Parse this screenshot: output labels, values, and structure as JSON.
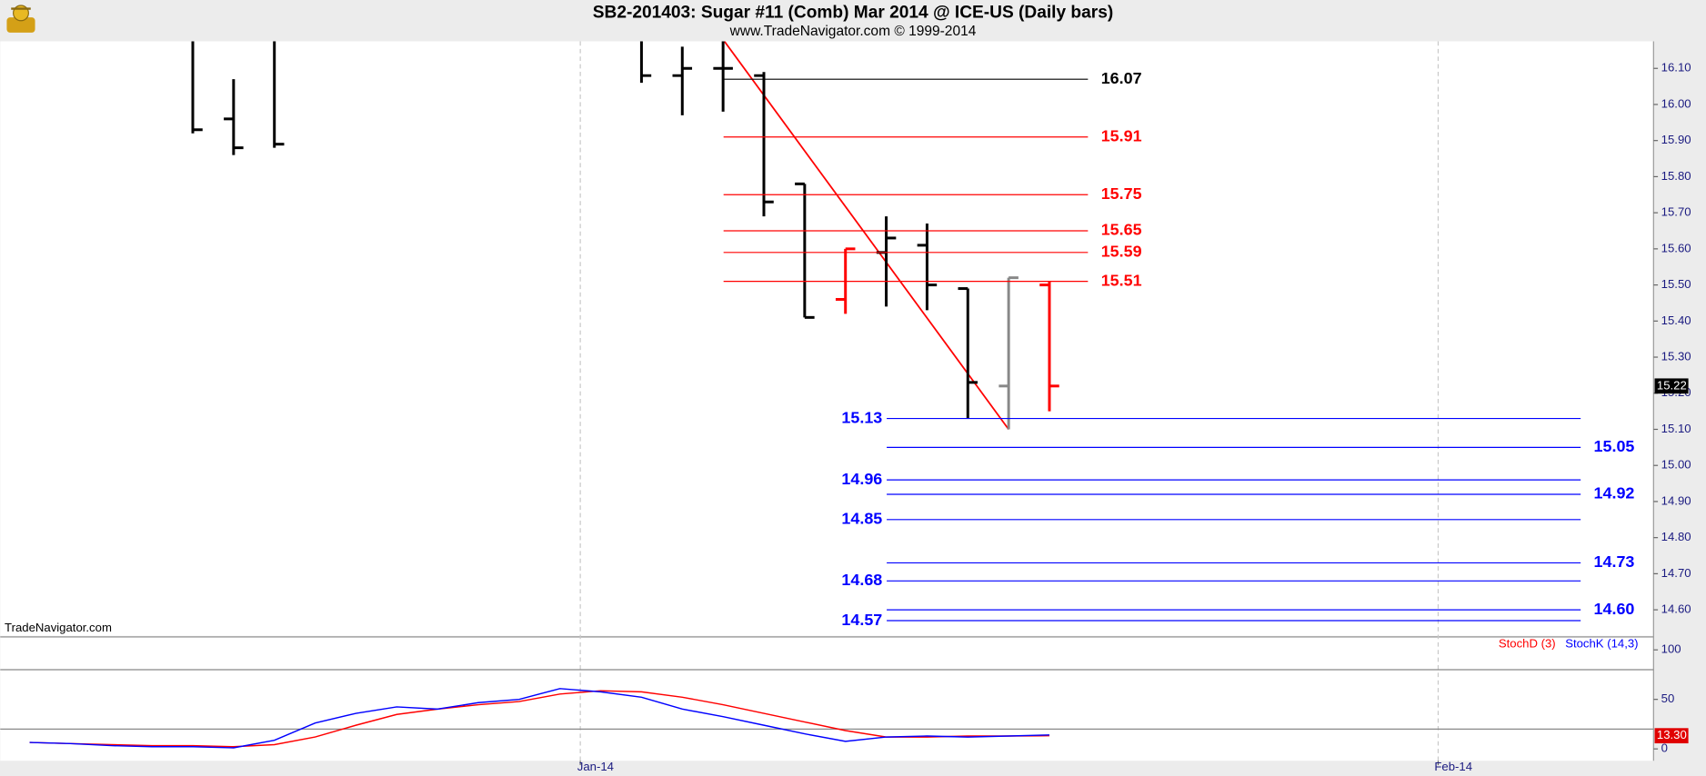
{
  "chart_data": [
    {
      "type": "ohlc",
      "title": "SB2-201403:  Sugar #11 (Comb) Mar 2014 @ ICE-US  (Daily bars)",
      "subtitle": "www.TradeNavigator.com © 1999-2014",
      "watermark": "TradeNavigator.com",
      "x": [
        0,
        1,
        2,
        11,
        12,
        13,
        14,
        15,
        16,
        17,
        18,
        19,
        20,
        21
      ],
      "open": [
        16.2,
        15.96,
        16.25,
        16.2,
        16.08,
        16.1,
        16.08,
        15.78,
        15.46,
        15.59,
        15.61,
        15.49,
        15.22,
        15.5
      ],
      "high": [
        16.25,
        16.07,
        16.25,
        16.2,
        16.16,
        16.18,
        16.09,
        15.78,
        15.6,
        15.69,
        15.67,
        15.49,
        15.52,
        15.51
      ],
      "low": [
        15.92,
        15.86,
        15.88,
        16.06,
        15.97,
        15.98,
        15.69,
        15.41,
        15.42,
        15.44,
        15.43,
        15.13,
        15.1,
        15.15
      ],
      "close": [
        15.93,
        15.88,
        15.89,
        16.08,
        16.1,
        16.1,
        15.73,
        15.41,
        15.6,
        15.63,
        15.5,
        15.23,
        15.52,
        15.22
      ],
      "colors": [
        "#000000",
        "#000000",
        "#000000",
        "#000000",
        "#000000",
        "#000000",
        "#000000",
        "#000000",
        "#ff0000",
        "#000000",
        "#000000",
        "#000000",
        "#888888",
        "#ff0000"
      ],
      "ylim": [
        14.528,
        16.175
      ],
      "yticks": [
        {
          "value": 14.6,
          "label": "14.60"
        },
        {
          "value": 14.7,
          "label": "14.70"
        },
        {
          "value": 14.8,
          "label": "14.80"
        },
        {
          "value": 14.9,
          "label": "14.90"
        },
        {
          "value": 15.0,
          "label": "15.00"
        },
        {
          "value": 15.1,
          "label": "15.10"
        },
        {
          "value": 15.2,
          "label": "15.20"
        },
        {
          "value": 15.3,
          "label": "15.30"
        },
        {
          "value": 15.4,
          "label": "15.40"
        },
        {
          "value": 15.5,
          "label": "15.50"
        },
        {
          "value": 15.6,
          "label": "15.60"
        },
        {
          "value": 15.7,
          "label": "15.70"
        },
        {
          "value": 15.8,
          "label": "15.80"
        },
        {
          "value": 15.9,
          "label": "15.90"
        },
        {
          "value": 16.0,
          "label": "16.00"
        },
        {
          "value": 16.1,
          "label": "16.10"
        }
      ],
      "trendline": {
        "x": [
          13,
          20
        ],
        "y": [
          16.18,
          15.1
        ],
        "color": "#ff0000"
      },
      "levels": [
        {
          "values": [
            16.07,
            15.91,
            15.75,
            15.65,
            15.59,
            15.51
          ],
          "colors": [
            "#000000",
            "#ff0000",
            "#ff0000",
            "#ff0000",
            "#ff0000",
            "#ff0000"
          ]
        },
        {
          "values": [
            15.13,
            14.96,
            14.85,
            14.68,
            14.57
          ],
          "color": "#0000ff"
        },
        {
          "values": [
            15.05,
            14.92,
            14.73,
            14.6
          ],
          "value_labels": [
            "15.05",
            "14.92",
            "14.73",
            "14.60"
          ],
          "color": "#0000ff"
        }
      ],
      "last_price": 15.22
    },
    {
      "type": "line",
      "x": [
        -4,
        -3,
        -2,
        -1,
        0,
        1,
        2,
        3,
        4,
        5,
        6,
        7,
        8,
        9,
        10,
        11,
        12,
        13,
        14,
        15,
        16,
        17,
        18,
        19,
        20,
        21
      ],
      "series": [
        {
          "name": "StochD (3)",
          "color": "#ff0000",
          "values": [
            6.5,
            5.4,
            4.3,
            3.3,
            3.3,
            2.2,
            4.3,
            12,
            23.9,
            34.8,
            40.2,
            44.6,
            47.8,
            55.4,
            58.7,
            57.6,
            52.2,
            44.6,
            35.9,
            27.2,
            18.5,
            12,
            12,
            13,
            13,
            13.3
          ]
        },
        {
          "name": "StochK (14,3)",
          "color": "#0000ff",
          "values": [
            6.5,
            5.4,
            3.3,
            2.2,
            2.2,
            1.1,
            8.7,
            26.1,
            35.9,
            42.4,
            40.2,
            46.7,
            50,
            60.9,
            57.6,
            52.2,
            40.2,
            32.6,
            23.9,
            15.2,
            7.6,
            12,
            13,
            12,
            13,
            14.1
          ]
        }
      ],
      "xlim": [
        -4.72,
        35.81
      ],
      "xticks": [
        {
          "value": 9.5,
          "label": "Jan-14"
        },
        {
          "value": 30.53,
          "label": "Feb-14"
        }
      ],
      "ylim": [
        -12,
        112
      ],
      "yticks": [
        0,
        50,
        100
      ],
      "hlines": [
        20,
        80
      ],
      "last_value": {
        "value": 13.3,
        "label": "13.30"
      }
    }
  ]
}
